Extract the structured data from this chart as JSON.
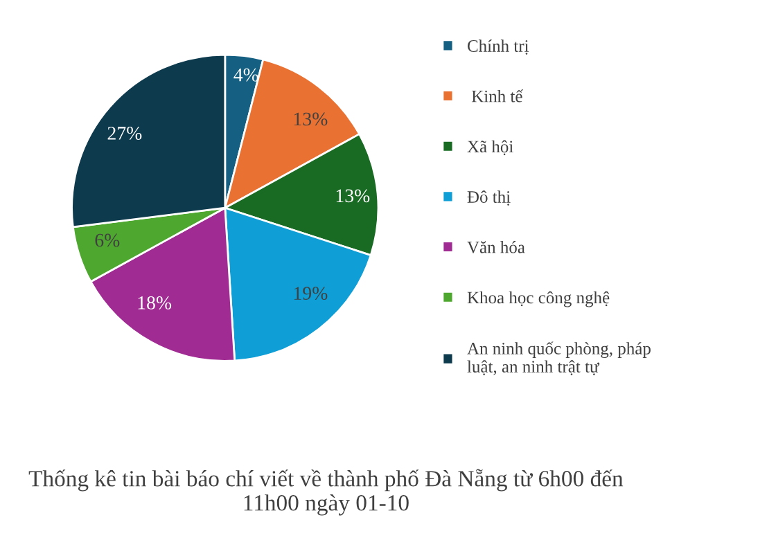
{
  "chart_data": {
    "type": "pie",
    "title": "Thống kê tin bài báo chí viết về thành phố Đà Nẵng từ 6h00 đến 11h00 ngày 01-10",
    "categories": [
      "Chính trị",
      " Kinh tế",
      "Xã hội",
      "Đô thị",
      "Văn hóa",
      "Khoa học công nghệ",
      "An ninh quốc phòng, pháp luật, an ninh trật tự"
    ],
    "values": [
      4,
      13,
      13,
      19,
      18,
      6,
      27
    ],
    "value_labels": [
      "4%",
      "13%",
      "13%",
      "19%",
      "18%",
      "6%",
      "27%"
    ],
    "colors": [
      "#156082",
      "#e97132",
      "#196b24",
      "#0f9ed5",
      "#a02b93",
      "#4ea72e",
      "#0e3a4e"
    ],
    "legend": "right"
  }
}
